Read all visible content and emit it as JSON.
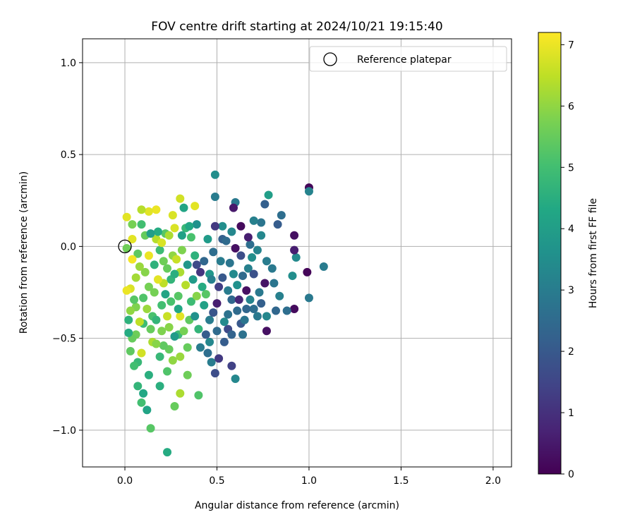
{
  "chart_data": {
    "type": "scatter",
    "title": "FOV centre drift starting at 2024/10/21 19:15:40",
    "xlabel": "Angular distance from reference (arcmin)",
    "ylabel": "Rotation from reference (arcmin)",
    "xlim": [
      -0.23,
      2.1
    ],
    "ylim": [
      -1.2,
      1.13
    ],
    "xticks": [
      0.0,
      0.5,
      1.0,
      1.5,
      2.0
    ],
    "xtick_labels": [
      "0.0",
      "0.5",
      "1.0",
      "1.5",
      "2.0"
    ],
    "yticks": [
      -1.0,
      -0.5,
      0.0,
      0.5,
      1.0
    ],
    "ytick_labels": [
      "−1.0",
      "−0.5",
      "0.0",
      "0.5",
      "1.0"
    ],
    "grid": true,
    "legend": {
      "position": "top-right",
      "entries": [
        {
          "label": "Reference platepar",
          "marker": "open-circle"
        }
      ]
    },
    "reference_point": {
      "x": 0.0,
      "y": 0.0
    },
    "colorbar": {
      "label": "Hours from first FF file",
      "colormap": "viridis",
      "range": [
        0,
        7.2
      ],
      "ticks": [
        0,
        1,
        2,
        3,
        4,
        5,
        6,
        7
      ],
      "tick_labels": [
        "0",
        "1",
        "2",
        "3",
        "4",
        "5",
        "6",
        "7"
      ]
    },
    "points": [
      {
        "x": 1.0,
        "y": 0.32,
        "c": 0.1
      },
      {
        "x": 1.0,
        "y": 0.3,
        "c": 3.2
      },
      {
        "x": 0.49,
        "y": 0.39,
        "c": 3.5
      },
      {
        "x": 0.49,
        "y": 0.27,
        "c": 3.0
      },
      {
        "x": 0.6,
        "y": 0.24,
        "c": 2.9
      },
      {
        "x": 0.59,
        "y": 0.21,
        "c": 0.5
      },
      {
        "x": 0.78,
        "y": 0.28,
        "c": 4.0
      },
      {
        "x": 0.76,
        "y": 0.23,
        "c": 2.2
      },
      {
        "x": 0.85,
        "y": 0.17,
        "c": 2.6
      },
      {
        "x": 0.83,
        "y": 0.12,
        "c": 2.1
      },
      {
        "x": 0.92,
        "y": 0.06,
        "c": 0.3
      },
      {
        "x": 0.93,
        "y": -0.06,
        "c": 3.4
      },
      {
        "x": 0.92,
        "y": -0.02,
        "c": 0.6
      },
      {
        "x": 0.99,
        "y": -0.14,
        "c": 0.1
      },
      {
        "x": 1.08,
        "y": -0.11,
        "c": 3.0
      },
      {
        "x": 0.91,
        "y": -0.16,
        "c": 3.5
      },
      {
        "x": 1.0,
        "y": -0.28,
        "c": 2.9
      },
      {
        "x": 0.92,
        "y": -0.34,
        "c": 0.2
      },
      {
        "x": 0.88,
        "y": -0.35,
        "c": 2.6
      },
      {
        "x": 0.82,
        "y": -0.35,
        "c": 2.4
      },
      {
        "x": 0.84,
        "y": -0.27,
        "c": 3.1
      },
      {
        "x": 0.77,
        "y": -0.38,
        "c": 3.3
      },
      {
        "x": 0.77,
        "y": -0.46,
        "c": 0.3
      },
      {
        "x": 0.8,
        "y": -0.12,
        "c": 2.9
      },
      {
        "x": 0.77,
        "y": -0.08,
        "c": 3.0
      },
      {
        "x": 0.76,
        "y": -0.2,
        "c": 0.4
      },
      {
        "x": 0.73,
        "y": -0.25,
        "c": 2.9
      },
      {
        "x": 0.7,
        "y": -0.34,
        "c": 2.6
      },
      {
        "x": 0.72,
        "y": -0.02,
        "c": 3.2
      },
      {
        "x": 0.74,
        "y": 0.06,
        "c": 3.3
      },
      {
        "x": 0.74,
        "y": 0.13,
        "c": 2.8
      },
      {
        "x": 0.7,
        "y": 0.14,
        "c": 3.1
      },
      {
        "x": 0.68,
        "y": 0.01,
        "c": 2.6
      },
      {
        "x": 0.67,
        "y": -0.12,
        "c": 3.1
      },
      {
        "x": 0.66,
        "y": -0.24,
        "c": 0.3
      },
      {
        "x": 0.66,
        "y": -0.34,
        "c": 2.4
      },
      {
        "x": 0.63,
        "y": -0.42,
        "c": 2.0
      },
      {
        "x": 0.64,
        "y": -0.48,
        "c": 2.7
      },
      {
        "x": 0.61,
        "y": -0.35,
        "c": 2.5
      },
      {
        "x": 0.63,
        "y": 0.11,
        "c": 0.2
      },
      {
        "x": 0.6,
        "y": -0.01,
        "c": 0.3
      },
      {
        "x": 0.59,
        "y": -0.15,
        "c": 3.4
      },
      {
        "x": 0.58,
        "y": -0.29,
        "c": 2.4
      },
      {
        "x": 0.56,
        "y": -0.37,
        "c": 2.7
      },
      {
        "x": 0.56,
        "y": -0.45,
        "c": 1.6
      },
      {
        "x": 0.54,
        "y": -0.52,
        "c": 2.1
      },
      {
        "x": 0.53,
        "y": 0.11,
        "c": 3.5
      },
      {
        "x": 0.53,
        "y": 0.04,
        "c": 2.2
      },
      {
        "x": 0.52,
        "y": -0.08,
        "c": 3.0
      },
      {
        "x": 0.51,
        "y": -0.22,
        "c": 1.3
      },
      {
        "x": 0.5,
        "y": -0.31,
        "c": 0.6
      },
      {
        "x": 0.49,
        "y": 0.11,
        "c": 1.2
      },
      {
        "x": 0.48,
        "y": -0.03,
        "c": 2.6
      },
      {
        "x": 0.46,
        "y": -0.15,
        "c": 3.8
      },
      {
        "x": 0.46,
        "y": -0.4,
        "c": 3.0
      },
      {
        "x": 0.46,
        "y": -0.52,
        "c": 3.3
      },
      {
        "x": 0.47,
        "y": -0.63,
        "c": 3.0
      },
      {
        "x": 0.49,
        "y": -0.69,
        "c": 1.7
      },
      {
        "x": 0.58,
        "y": -0.65,
        "c": 1.4
      },
      {
        "x": 0.51,
        "y": -0.61,
        "c": 1.2
      },
      {
        "x": 0.6,
        "y": -0.72,
        "c": 3.3
      },
      {
        "x": 0.45,
        "y": 0.04,
        "c": 3.9
      },
      {
        "x": 0.43,
        "y": -0.08,
        "c": 2.4
      },
      {
        "x": 0.42,
        "y": -0.22,
        "c": 4.4
      },
      {
        "x": 0.43,
        "y": -0.32,
        "c": 4.1
      },
      {
        "x": 0.4,
        "y": -0.45,
        "c": 4.7
      },
      {
        "x": 0.41,
        "y": -0.55,
        "c": 3.0
      },
      {
        "x": 0.45,
        "y": -0.58,
        "c": 2.6
      },
      {
        "x": 0.4,
        "y": -0.81,
        "c": 5.2
      },
      {
        "x": 0.39,
        "y": 0.12,
        "c": 3.6
      },
      {
        "x": 0.38,
        "y": -0.05,
        "c": 4.6
      },
      {
        "x": 0.37,
        "y": -0.18,
        "c": 3.9
      },
      {
        "x": 0.36,
        "y": -0.3,
        "c": 4.9
      },
      {
        "x": 0.35,
        "y": -0.4,
        "c": 5.4
      },
      {
        "x": 0.34,
        "y": -0.55,
        "c": 5.5
      },
      {
        "x": 0.34,
        "y": -0.7,
        "c": 5.6
      },
      {
        "x": 0.32,
        "y": 0.21,
        "c": 4.2
      },
      {
        "x": 0.33,
        "y": 0.1,
        "c": 4.8
      },
      {
        "x": 0.31,
        "y": -0.02,
        "c": 5.8
      },
      {
        "x": 0.3,
        "y": -0.14,
        "c": 6.3
      },
      {
        "x": 0.29,
        "y": -0.27,
        "c": 5.3
      },
      {
        "x": 0.3,
        "y": -0.38,
        "c": 6.9
      },
      {
        "x": 0.29,
        "y": -0.48,
        "c": 4.9
      },
      {
        "x": 0.3,
        "y": -0.6,
        "c": 6.1
      },
      {
        "x": 0.3,
        "y": -0.8,
        "c": 6.3
      },
      {
        "x": 0.27,
        "y": -0.87,
        "c": 5.5
      },
      {
        "x": 0.3,
        "y": 0.26,
        "c": 6.7
      },
      {
        "x": 0.38,
        "y": 0.22,
        "c": 6.9
      },
      {
        "x": 0.27,
        "y": 0.1,
        "c": 6.8
      },
      {
        "x": 0.26,
        "y": -0.05,
        "c": 6.0
      },
      {
        "x": 0.25,
        "y": -0.18,
        "c": 4.7
      },
      {
        "x": 0.25,
        "y": -0.3,
        "c": 5.1
      },
      {
        "x": 0.24,
        "y": -0.44,
        "c": 5.9
      },
      {
        "x": 0.24,
        "y": -0.56,
        "c": 5.5
      },
      {
        "x": 0.23,
        "y": -0.68,
        "c": 5.2
      },
      {
        "x": 0.23,
        "y": -1.12,
        "c": 4.4
      },
      {
        "x": 0.22,
        "y": 0.07,
        "c": 5.3
      },
      {
        "x": 0.21,
        "y": -0.08,
        "c": 5.6
      },
      {
        "x": 0.21,
        "y": -0.2,
        "c": 6.5
      },
      {
        "x": 0.2,
        "y": -0.32,
        "c": 5.0
      },
      {
        "x": 0.2,
        "y": -0.46,
        "c": 5.8
      },
      {
        "x": 0.19,
        "y": -0.6,
        "c": 4.8
      },
      {
        "x": 0.19,
        "y": -0.76,
        "c": 4.5
      },
      {
        "x": 0.17,
        "y": 0.2,
        "c": 7.0
      },
      {
        "x": 0.17,
        "y": 0.04,
        "c": 6.4
      },
      {
        "x": 0.16,
        "y": -0.1,
        "c": 4.6
      },
      {
        "x": 0.16,
        "y": -0.25,
        "c": 5.7
      },
      {
        "x": 0.15,
        "y": -0.38,
        "c": 5.1
      },
      {
        "x": 0.15,
        "y": -0.52,
        "c": 6.3
      },
      {
        "x": 0.13,
        "y": -0.7,
        "c": 4.5
      },
      {
        "x": 0.12,
        "y": -0.89,
        "c": 4.2
      },
      {
        "x": 0.14,
        "y": -0.99,
        "c": 5.3
      },
      {
        "x": 0.13,
        "y": 0.19,
        "c": 6.9
      },
      {
        "x": 0.11,
        "y": 0.06,
        "c": 5.5
      },
      {
        "x": 0.11,
        "y": -0.14,
        "c": 5.9
      },
      {
        "x": 0.1,
        "y": -0.28,
        "c": 5.2
      },
      {
        "x": 0.1,
        "y": -0.42,
        "c": 4.9
      },
      {
        "x": 0.09,
        "y": -0.58,
        "c": 6.7
      },
      {
        "x": 0.1,
        "y": -0.8,
        "c": 4.3
      },
      {
        "x": 0.09,
        "y": -0.85,
        "c": 5.0
      },
      {
        "x": 0.09,
        "y": 0.2,
        "c": 6.4
      },
      {
        "x": 0.09,
        "y": 0.12,
        "c": 5.0
      },
      {
        "x": 0.07,
        "y": -0.04,
        "c": 5.4
      },
      {
        "x": 0.06,
        "y": -0.17,
        "c": 6.2
      },
      {
        "x": 0.06,
        "y": -0.33,
        "c": 5.8
      },
      {
        "x": 0.06,
        "y": -0.48,
        "c": 5.6
      },
      {
        "x": 0.07,
        "y": -0.63,
        "c": 4.8
      },
      {
        "x": 0.07,
        "y": -0.76,
        "c": 4.7
      },
      {
        "x": 0.04,
        "y": 0.12,
        "c": 5.7
      },
      {
        "x": 0.04,
        "y": 0.04,
        "c": 6.9
      },
      {
        "x": 0.04,
        "y": -0.07,
        "c": 7.1
      },
      {
        "x": 0.03,
        "y": -0.23,
        "c": 6.8
      },
      {
        "x": 0.03,
        "y": -0.35,
        "c": 6.0
      },
      {
        "x": 0.04,
        "y": -0.5,
        "c": 5.5
      },
      {
        "x": 0.05,
        "y": -0.65,
        "c": 5.0
      },
      {
        "x": 0.03,
        "y": -0.57,
        "c": 5.4
      },
      {
        "x": 0.01,
        "y": 0.16,
        "c": 6.9
      },
      {
        "x": 0.01,
        "y": -0.01,
        "c": 5.6
      },
      {
        "x": 0.01,
        "y": -0.24,
        "c": 7.0
      },
      {
        "x": 0.02,
        "y": -0.4,
        "c": 4.6
      },
      {
        "x": 0.02,
        "y": -0.47,
        "c": 4.4
      },
      {
        "x": 0.24,
        "y": 0.06,
        "c": 6.3
      },
      {
        "x": 0.18,
        "y": 0.08,
        "c": 4.4
      },
      {
        "x": 0.14,
        "y": 0.07,
        "c": 4.0
      },
      {
        "x": 0.26,
        "y": 0.17,
        "c": 6.8
      },
      {
        "x": 0.35,
        "y": 0.11,
        "c": 4.3
      },
      {
        "x": 0.34,
        "y": -0.1,
        "c": 3.8
      },
      {
        "x": 0.28,
        "y": -0.07,
        "c": 6.6
      },
      {
        "x": 0.39,
        "y": -0.1,
        "c": 1.6
      },
      {
        "x": 0.41,
        "y": -0.14,
        "c": 1.1
      },
      {
        "x": 0.44,
        "y": -0.26,
        "c": 5.3
      },
      {
        "x": 0.47,
        "y": -0.18,
        "c": 3.1
      },
      {
        "x": 0.53,
        "y": -0.17,
        "c": 2.0
      },
      {
        "x": 0.57,
        "y": -0.09,
        "c": 2.8
      },
      {
        "x": 0.61,
        "y": -0.21,
        "c": 3.6
      },
      {
        "x": 0.64,
        "y": -0.16,
        "c": 2.5
      },
      {
        "x": 0.68,
        "y": -0.29,
        "c": 3.2
      },
      {
        "x": 0.62,
        "y": -0.29,
        "c": 0.8
      },
      {
        "x": 0.65,
        "y": -0.4,
        "c": 2.8
      },
      {
        "x": 0.58,
        "y": -0.48,
        "c": 2.3
      },
      {
        "x": 0.54,
        "y": -0.41,
        "c": 3.4
      },
      {
        "x": 0.5,
        "y": -0.46,
        "c": 2.5
      },
      {
        "x": 0.48,
        "y": -0.36,
        "c": 1.9
      },
      {
        "x": 0.44,
        "y": -0.48,
        "c": 2.1
      },
      {
        "x": 0.55,
        "y": 0.03,
        "c": 2.5
      },
      {
        "x": 0.58,
        "y": 0.08,
        "c": 3.3
      },
      {
        "x": 0.56,
        "y": -0.24,
        "c": 3.0
      },
      {
        "x": 0.7,
        "y": -0.15,
        "c": 1.8
      },
      {
        "x": 0.72,
        "y": -0.38,
        "c": 2.9
      },
      {
        "x": 0.74,
        "y": -0.31,
        "c": 2.2
      },
      {
        "x": 0.81,
        "y": -0.2,
        "c": 2.8
      },
      {
        "x": 0.67,
        "y": 0.05,
        "c": 0.6
      },
      {
        "x": 0.63,
        "y": -0.05,
        "c": 1.7
      },
      {
        "x": 0.69,
        "y": -0.06,
        "c": 3.5
      },
      {
        "x": 0.36,
        "y": 0.05,
        "c": 5.1
      },
      {
        "x": 0.31,
        "y": 0.06,
        "c": 4.1
      },
      {
        "x": 0.27,
        "y": -0.15,
        "c": 4.5
      },
      {
        "x": 0.22,
        "y": -0.26,
        "c": 4.2
      },
      {
        "x": 0.18,
        "y": -0.18,
        "c": 6.9
      },
      {
        "x": 0.13,
        "y": -0.22,
        "c": 5.7
      },
      {
        "x": 0.12,
        "y": -0.34,
        "c": 6.1
      },
      {
        "x": 0.17,
        "y": -0.4,
        "c": 4.7
      },
      {
        "x": 0.21,
        "y": -0.54,
        "c": 5.4
      },
      {
        "x": 0.26,
        "y": -0.62,
        "c": 6.0
      },
      {
        "x": 0.32,
        "y": -0.46,
        "c": 5.7
      },
      {
        "x": 0.38,
        "y": -0.38,
        "c": 3.6
      },
      {
        "x": 0.39,
        "y": -0.27,
        "c": 5.9
      },
      {
        "x": 0.33,
        "y": -0.21,
        "c": 6.4
      },
      {
        "x": 0.29,
        "y": -0.34,
        "c": 4.3
      },
      {
        "x": 0.23,
        "y": -0.38,
        "c": 6.6
      },
      {
        "x": 0.27,
        "y": -0.49,
        "c": 3.9
      },
      {
        "x": 0.17,
        "y": -0.53,
        "c": 5.9
      },
      {
        "x": 0.14,
        "y": -0.45,
        "c": 5.5
      },
      {
        "x": 0.08,
        "y": -0.41,
        "c": 6.5
      },
      {
        "x": 0.05,
        "y": -0.29,
        "c": 5.3
      },
      {
        "x": 0.08,
        "y": -0.11,
        "c": 6.1
      },
      {
        "x": 0.13,
        "y": -0.05,
        "c": 7.0
      },
      {
        "x": 0.19,
        "y": -0.02,
        "c": 4.9
      },
      {
        "x": 0.23,
        "y": -0.12,
        "c": 5.5
      },
      {
        "x": 0.2,
        "y": 0.02,
        "c": 6.8
      }
    ]
  }
}
